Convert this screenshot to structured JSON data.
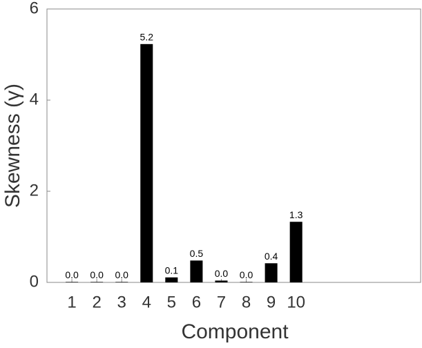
{
  "chart_data": {
    "type": "bar",
    "xlabel": "Component",
    "ylabel": "Skewness (γ)",
    "x": [
      1,
      2,
      3,
      4,
      5,
      6,
      7,
      8,
      9,
      10
    ],
    "values": [
      0.01,
      0.01,
      0.01,
      5.23,
      0.11,
      0.48,
      0.04,
      0.01,
      0.42,
      1.33
    ],
    "value_labels": [
      "0.0",
      "0.0",
      "0.0",
      "5.2",
      "0.1",
      "0.5",
      "0.0",
      "0.0",
      "0.4",
      "1.3"
    ],
    "color": "#000000",
    "xlim": [
      0,
      15
    ],
    "xticks": [
      1,
      2,
      3,
      4,
      5,
      6,
      7,
      8,
      9,
      10
    ],
    "ylim": [
      0,
      6
    ],
    "yticks": [
      0,
      2,
      4,
      6
    ],
    "grid": false
  }
}
